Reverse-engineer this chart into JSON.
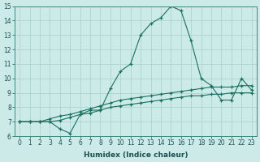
{
  "xlabel": "Humidex (Indice chaleur)",
  "background_color": "#cceae8",
  "grid_color": "#aed4d0",
  "line_color": "#1a7060",
  "xlim": [
    -0.5,
    23.5
  ],
  "ylim": [
    6,
    15
  ],
  "xtick_labels": [
    "0",
    "1",
    "2",
    "3",
    "4",
    "5",
    "6",
    "7",
    "8",
    "9",
    "10",
    "11",
    "12",
    "13",
    "14",
    "15",
    "16",
    "17",
    "18",
    "19",
    "20",
    "21",
    "22",
    "23"
  ],
  "ytick_labels": [
    "6",
    "7",
    "8",
    "9",
    "10",
    "11",
    "12",
    "13",
    "14",
    "15"
  ],
  "series1_x": [
    0,
    1,
    2,
    3,
    4,
    5,
    6,
    7,
    8,
    9,
    10,
    11,
    12,
    13,
    14,
    15,
    16,
    17,
    18,
    19,
    20,
    21,
    22,
    23
  ],
  "series1_y": [
    7.0,
    7.0,
    7.0,
    7.0,
    6.5,
    6.2,
    7.5,
    7.8,
    7.8,
    9.3,
    10.5,
    11.0,
    13.0,
    13.8,
    14.2,
    15.0,
    14.7,
    12.6,
    10.0,
    9.5,
    8.5,
    8.5,
    10.0,
    9.2
  ],
  "series2_x": [
    0,
    1,
    2,
    3,
    4,
    5,
    6,
    7,
    8,
    9,
    10,
    11,
    12,
    13,
    14,
    15,
    16,
    17,
    18,
    19,
    20,
    21,
    22,
    23
  ],
  "series2_y": [
    7.0,
    7.0,
    7.0,
    7.2,
    7.4,
    7.5,
    7.7,
    7.9,
    8.1,
    8.3,
    8.5,
    8.6,
    8.7,
    8.8,
    8.9,
    9.0,
    9.1,
    9.2,
    9.3,
    9.4,
    9.4,
    9.4,
    9.5,
    9.5
  ],
  "series3_x": [
    0,
    1,
    2,
    3,
    4,
    5,
    6,
    7,
    8,
    9,
    10,
    11,
    12,
    13,
    14,
    15,
    16,
    17,
    18,
    19,
    20,
    21,
    22,
    23
  ],
  "series3_y": [
    7.0,
    7.0,
    7.0,
    7.0,
    7.1,
    7.3,
    7.5,
    7.6,
    7.8,
    8.0,
    8.1,
    8.2,
    8.3,
    8.4,
    8.5,
    8.6,
    8.7,
    8.8,
    8.8,
    8.9,
    8.9,
    9.0,
    9.0,
    9.0
  ],
  "tick_fontsize": 5.5,
  "axis_fontsize": 6.5
}
